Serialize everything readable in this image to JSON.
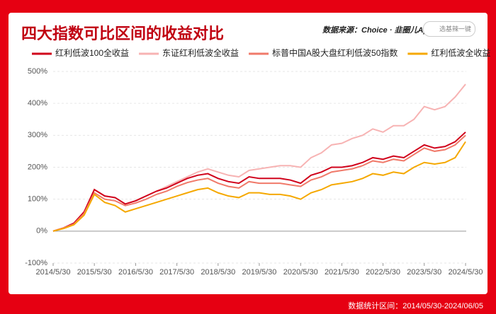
{
  "chart_data": {
    "type": "line",
    "title": "四大指数可比区间的收益对比",
    "source": "数据来源：Choice · 韭圈儿App",
    "search": "选基辣一键",
    "footer": "数据统计区间：2014/05/30-2024/06/05",
    "x": [
      "2014/5/30",
      "2014/8/30",
      "2014/11/30",
      "2015/2/28",
      "2015/5/30",
      "2015/8/30",
      "2015/11/30",
      "2016/2/28",
      "2016/5/30",
      "2016/8/30",
      "2016/11/30",
      "2017/2/28",
      "2017/5/30",
      "2017/8/30",
      "2017/11/30",
      "2018/2/28",
      "2018/5/30",
      "2018/8/30",
      "2018/11/30",
      "2019/2/28",
      "2019/5/30",
      "2019/8/30",
      "2019/11/30",
      "2020/2/28",
      "2020/5/30",
      "2020/8/30",
      "2020/11/30",
      "2021/2/28",
      "2021/5/30",
      "2021/8/30",
      "2021/11/30",
      "2022/2/28",
      "2022/5/30",
      "2022/8/30",
      "2022/11/30",
      "2023/2/28",
      "2023/5/30",
      "2023/8/30",
      "2023/11/30",
      "2024/2/28",
      "2024/5/30"
    ],
    "series": [
      {
        "name": "红利低波100全收益",
        "color": "#d0021b",
        "values": [
          0,
          10,
          25,
          60,
          130,
          110,
          105,
          85,
          95,
          110,
          125,
          135,
          150,
          165,
          175,
          180,
          165,
          155,
          150,
          170,
          165,
          165,
          165,
          160,
          150,
          175,
          185,
          200,
          200,
          205,
          215,
          230,
          225,
          235,
          230,
          250,
          270,
          260,
          265,
          280,
          310
        ]
      },
      {
        "name": "东证红利低波全收益",
        "color": "#f7b3b3",
        "values": [
          0,
          10,
          25,
          60,
          130,
          110,
          105,
          85,
          95,
          110,
          125,
          140,
          155,
          170,
          185,
          195,
          185,
          175,
          170,
          190,
          195,
          200,
          205,
          205,
          200,
          230,
          245,
          270,
          275,
          290,
          300,
          320,
          310,
          330,
          330,
          350,
          390,
          380,
          390,
          420,
          460
        ]
      },
      {
        "name": "标普中国A股大盘红利低波50指数",
        "color": "#f07a6a",
        "values": [
          0,
          10,
          22,
          55,
          120,
          100,
          95,
          80,
          88,
          100,
          115,
          125,
          140,
          152,
          160,
          165,
          150,
          140,
          135,
          155,
          150,
          150,
          150,
          145,
          140,
          160,
          170,
          185,
          190,
          195,
          205,
          220,
          215,
          225,
          220,
          240,
          260,
          250,
          255,
          270,
          300
        ]
      },
      {
        "name": "红利低波全收益",
        "color": "#f5a800",
        "values": [
          0,
          8,
          20,
          50,
          115,
          90,
          80,
          60,
          70,
          80,
          90,
          100,
          110,
          120,
          130,
          135,
          120,
          110,
          105,
          120,
          120,
          115,
          115,
          110,
          100,
          120,
          130,
          145,
          150,
          155,
          165,
          180,
          175,
          185,
          180,
          200,
          215,
          210,
          215,
          230,
          280
        ]
      }
    ],
    "xlim": [
      "2014/5/30",
      "2024/6/5"
    ],
    "xticks": [
      "2014/5/30",
      "2015/5/30",
      "2016/5/30",
      "2017/5/30",
      "2018/5/30",
      "2019/5/30",
      "2020/5/30",
      "2021/5/30",
      "2022/5/30",
      "2023/5/30",
      "2024/5/30"
    ],
    "ylim": [
      -100,
      500
    ],
    "yticks": [
      {
        "value": -100,
        "label": "-100%"
      },
      {
        "value": 0,
        "label": "0%"
      },
      {
        "value": 100,
        "label": "100%"
      },
      {
        "value": 200,
        "label": "200%"
      },
      {
        "value": 300,
        "label": "300%"
      },
      {
        "value": 400,
        "label": "400%"
      },
      {
        "value": 500,
        "label": "500%"
      }
    ],
    "grid": true
  }
}
